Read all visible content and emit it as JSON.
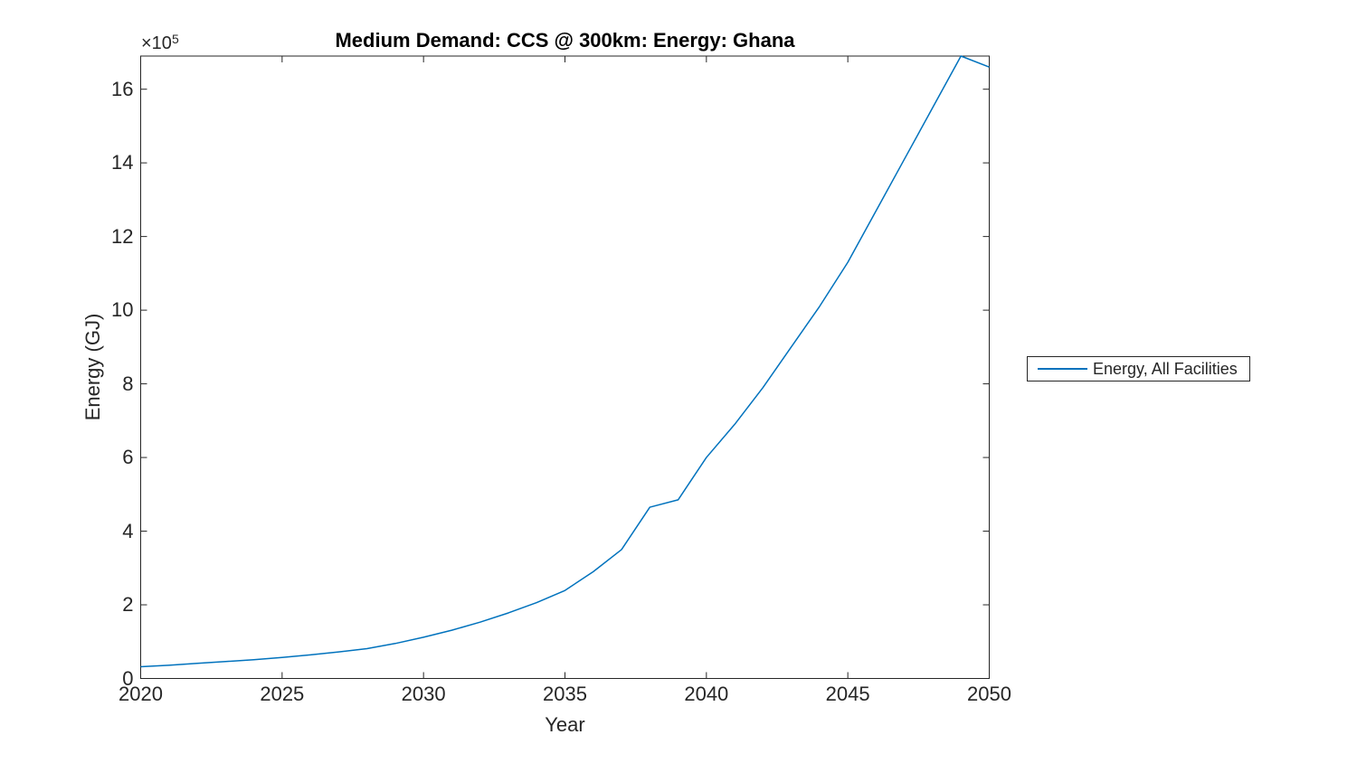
{
  "figure": {
    "title": "Medium Demand: CCS @ 300km: Energy: Ghana",
    "xlabel": "Year",
    "ylabel": "Energy (GJ)",
    "y_exponent_base": "×10",
    "y_exponent_power": "5",
    "legend": {
      "position": "right-outside",
      "entries": [
        {
          "label": "Energy, All Facilities",
          "color": "#0072BD"
        }
      ]
    },
    "colors": {
      "line": "#0072BD",
      "axis": "#262626",
      "text": "#262626",
      "background": "#ffffff"
    }
  },
  "chart_data": {
    "type": "line",
    "title": "Medium Demand: CCS @ 300km: Energy: Ghana",
    "xlabel": "Year",
    "ylabel": "Energy (GJ)",
    "grid": false,
    "legend_position": "right-outside",
    "xlim": [
      2020,
      2050
    ],
    "ylim": [
      0,
      1690000
    ],
    "xticks": [
      2020,
      2025,
      2030,
      2035,
      2040,
      2045,
      2050
    ],
    "yticks": [
      0,
      200000,
      400000,
      600000,
      800000,
      1000000,
      1200000,
      1400000,
      1600000
    ],
    "ytick_display": [
      "0",
      "2",
      "4",
      "6",
      "8",
      "10",
      "12",
      "14",
      "16"
    ],
    "y_multiplier_label": "×10^5",
    "x": [
      2020,
      2021,
      2022,
      2023,
      2024,
      2025,
      2026,
      2027,
      2028,
      2029,
      2030,
      2031,
      2032,
      2033,
      2034,
      2035,
      2036,
      2037,
      2038,
      2039,
      2040,
      2041,
      2042,
      2043,
      2044,
      2045,
      2046,
      2047,
      2048,
      2049,
      2050
    ],
    "series": [
      {
        "name": "Energy, All Facilities",
        "color": "#0072BD",
        "values": [
          32000,
          36000,
          41000,
          46000,
          51000,
          57000,
          64000,
          72000,
          81000,
          95000,
          112000,
          131000,
          153000,
          178000,
          206000,
          239000,
          290000,
          350000,
          465000,
          485000,
          600000,
          690000,
          790000,
          900000,
          1010000,
          1130000,
          1270000,
          1410000,
          1550000,
          1690000,
          1660000
        ]
      }
    ]
  }
}
